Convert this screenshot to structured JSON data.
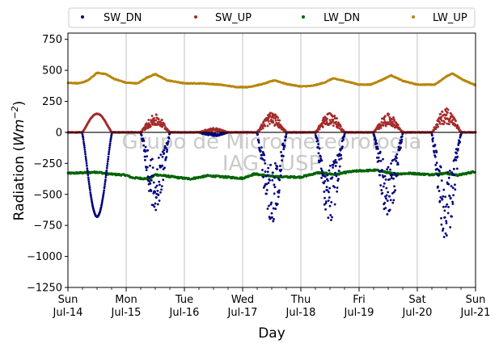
{
  "chart_data": {
    "type": "scatter",
    "xlabel": "Day",
    "ylabel_main": "Radiation (",
    "ylabel_unit_pre": "Wm",
    "ylabel_unit_exp": "−2",
    "ylabel_close": ")",
    "xlim": [
      0,
      7
    ],
    "ylim": [
      -1250,
      800
    ],
    "yticks": [
      -1250,
      -1000,
      -750,
      -500,
      -250,
      0,
      250,
      500,
      750
    ],
    "ytick_labels": [
      "−1250",
      "−1000",
      "−750",
      "−500",
      "−250",
      "0",
      "250",
      "500",
      "750"
    ],
    "xticks": [
      0,
      1,
      2,
      3,
      4,
      5,
      6,
      7
    ],
    "xtick_labels": [
      {
        "day": "Sun",
        "date": "Jul-14"
      },
      {
        "day": "Mon",
        "date": "Jul-15"
      },
      {
        "day": "Tue",
        "date": "Jul-16"
      },
      {
        "day": "Wed",
        "date": "Jul-17"
      },
      {
        "day": "Thu",
        "date": "Jul-18"
      },
      {
        "day": "Fri",
        "date": "Jul-19"
      },
      {
        "day": "Sat",
        "date": "Jul-20"
      },
      {
        "day": "Sun",
        "date": "Jul-21"
      }
    ],
    "grid": "x-only",
    "zero_line": true,
    "legend_position": "top, outside plot",
    "series": [
      {
        "name": "SW_DN",
        "color": "#00007f",
        "days": [
          {
            "peak": -680,
            "noisy": false
          },
          {
            "peak": -630,
            "noisy": true
          },
          {
            "peak": -30,
            "noisy": true
          },
          {
            "peak": -750,
            "noisy": true
          },
          {
            "peak": -740,
            "noisy": true
          },
          {
            "peak": -700,
            "noisy": true
          },
          {
            "peak": -890,
            "noisy": true
          }
        ]
      },
      {
        "name": "SW_UP",
        "color": "#a52a2a",
        "days": [
          {
            "peak": 150,
            "noisy": false
          },
          {
            "peak": 145,
            "noisy": true
          },
          {
            "peak": 35,
            "noisy": true
          },
          {
            "peak": 160,
            "noisy": true
          },
          {
            "peak": 165,
            "noisy": true
          },
          {
            "peak": 150,
            "noisy": true
          },
          {
            "peak": 200,
            "noisy": true
          }
        ]
      },
      {
        "name": "LW_DN",
        "color": "#006400",
        "profile": [
          [
            0,
            -330
          ],
          [
            0.3,
            -325
          ],
          [
            0.5,
            -320
          ],
          [
            0.7,
            -335
          ],
          [
            1.0,
            -345
          ],
          [
            1.1,
            -365
          ],
          [
            1.4,
            -375
          ],
          [
            1.5,
            -340
          ],
          [
            1.9,
            -365
          ],
          [
            2.1,
            -375
          ],
          [
            2.4,
            -350
          ],
          [
            2.7,
            -360
          ],
          [
            3.0,
            -370
          ],
          [
            3.2,
            -335
          ],
          [
            3.5,
            -355
          ],
          [
            3.8,
            -360
          ],
          [
            4.0,
            -360
          ],
          [
            4.3,
            -325
          ],
          [
            4.6,
            -340
          ],
          [
            4.8,
            -320
          ],
          [
            5.0,
            -310
          ],
          [
            5.3,
            -305
          ],
          [
            5.6,
            -335
          ],
          [
            5.9,
            -330
          ],
          [
            6.2,
            -340
          ],
          [
            6.5,
            -330
          ],
          [
            6.7,
            -345
          ],
          [
            7.0,
            -315
          ]
        ]
      },
      {
        "name": "LW_UP",
        "color": "#b8860b",
        "profile": [
          [
            0,
            400
          ],
          [
            0.2,
            395
          ],
          [
            0.35,
            420
          ],
          [
            0.5,
            480
          ],
          [
            0.65,
            470
          ],
          [
            0.8,
            430
          ],
          [
            1.0,
            400
          ],
          [
            1.2,
            395
          ],
          [
            1.35,
            440
          ],
          [
            1.5,
            470
          ],
          [
            1.7,
            420
          ],
          [
            2.0,
            395
          ],
          [
            2.3,
            395
          ],
          [
            2.6,
            385
          ],
          [
            2.9,
            365
          ],
          [
            3.1,
            365
          ],
          [
            3.35,
            390
          ],
          [
            3.55,
            420
          ],
          [
            3.75,
            390
          ],
          [
            4.0,
            370
          ],
          [
            4.2,
            375
          ],
          [
            4.4,
            400
          ],
          [
            4.55,
            435
          ],
          [
            4.75,
            415
          ],
          [
            5.0,
            385
          ],
          [
            5.2,
            385
          ],
          [
            5.4,
            425
          ],
          [
            5.55,
            460
          ],
          [
            5.75,
            415
          ],
          [
            6.0,
            385
          ],
          [
            6.3,
            385
          ],
          [
            6.5,
            450
          ],
          [
            6.6,
            475
          ],
          [
            6.8,
            420
          ],
          [
            7.0,
            380
          ]
        ]
      }
    ],
    "watermark": {
      "line1": "Grupo de Micrometeorologia",
      "line2": "IAG - USP"
    }
  }
}
